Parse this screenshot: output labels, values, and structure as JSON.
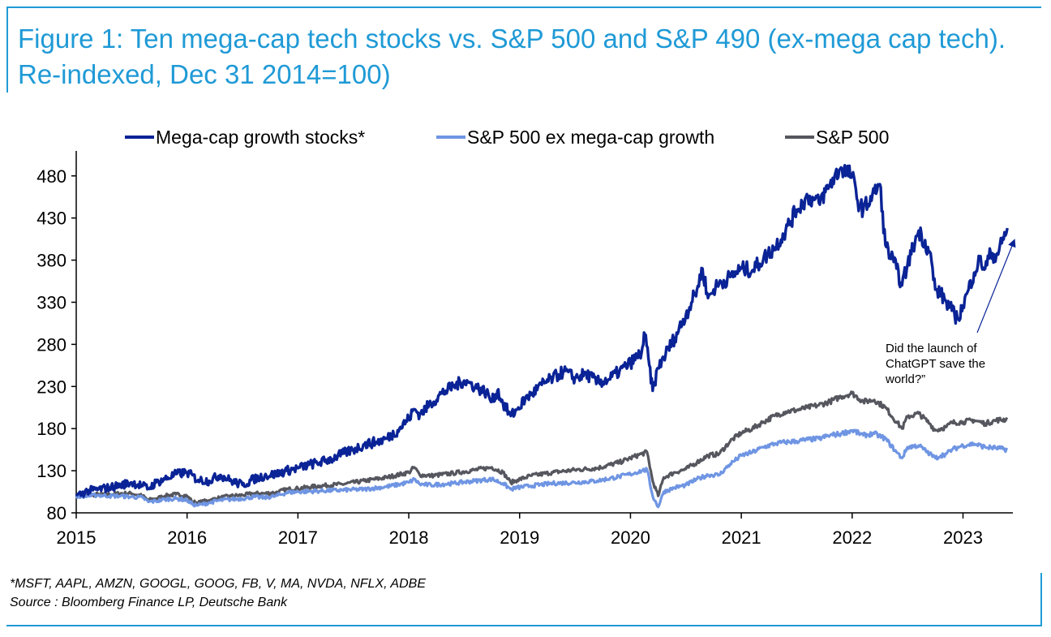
{
  "title": "Figure 1: Ten mega-cap tech stocks vs. S&P 500 and S&P 490 (ex-mega cap tech). Re-indexed, Dec 31 2014=100)",
  "footnote": {
    "tickers": "*MSFT, AAPL, AMZN, GOOGL, GOOG, FB, V, MA, NVDA, NFLX, ADBE",
    "source": "Source : Bloomberg Finance LP, Deutsche Bank"
  },
  "colors": {
    "frame": "#1f9ad6",
    "title": "#1f9ad6",
    "mega": "#0a2396",
    "ex_mega": "#6f95e3",
    "sp500": "#55565e",
    "annotation_arrow": "#0a2396"
  },
  "chart_data": {
    "type": "line",
    "title": "",
    "xlabel": "",
    "ylabel": "",
    "xlim": [
      2015.0,
      2023.45
    ],
    "ylim": [
      80,
      500
    ],
    "yticks": [
      80,
      130,
      180,
      230,
      280,
      330,
      380,
      430,
      480
    ],
    "xticks": [
      2015,
      2016,
      2017,
      2018,
      2019,
      2020,
      2021,
      2022,
      2023
    ],
    "ytick_labels": [
      "80",
      "130",
      "180",
      "230",
      "280",
      "330",
      "380",
      "430",
      "480"
    ],
    "xtick_labels": [
      "2015",
      "2016",
      "2017",
      "2018",
      "2019",
      "2020",
      "2021",
      "2022",
      "2023"
    ],
    "grid": false,
    "legend_position": "top",
    "series": [
      {
        "name": "Mega-cap growth stocks*",
        "color": "#0a2396",
        "x": [
          2015.0,
          2015.1,
          2015.2,
          2015.3,
          2015.4,
          2015.5,
          2015.6,
          2015.65,
          2015.72,
          2015.8,
          2015.9,
          2016.0,
          2016.1,
          2016.2,
          2016.3,
          2016.4,
          2016.5,
          2016.6,
          2016.7,
          2016.8,
          2016.9,
          2017.0,
          2017.1,
          2017.2,
          2017.3,
          2017.4,
          2017.5,
          2017.6,
          2017.7,
          2017.8,
          2017.9,
          2018.0,
          2018.05,
          2018.1,
          2018.2,
          2018.3,
          2018.4,
          2018.5,
          2018.6,
          2018.7,
          2018.75,
          2018.8,
          2018.85,
          2018.92,
          2018.98,
          2019.05,
          2019.1,
          2019.2,
          2019.3,
          2019.4,
          2019.5,
          2019.6,
          2019.7,
          2019.8,
          2019.9,
          2020.0,
          2020.1,
          2020.13,
          2020.17,
          2020.2,
          2020.25,
          2020.3,
          2020.4,
          2020.5,
          2020.6,
          2020.65,
          2020.7,
          2020.75,
          2020.8,
          2020.9,
          2021.0,
          2021.1,
          2021.2,
          2021.3,
          2021.4,
          2021.5,
          2021.6,
          2021.7,
          2021.8,
          2021.9,
          2022.0,
          2022.05,
          2022.1,
          2022.2,
          2022.25,
          2022.3,
          2022.4,
          2022.45,
          2022.5,
          2022.6,
          2022.7,
          2022.75,
          2022.8,
          2022.85,
          2022.9,
          2022.95,
          2023.0,
          2023.05,
          2023.1,
          2023.15,
          2023.2,
          2023.25,
          2023.3,
          2023.35,
          2023.4
        ],
        "values": [
          100,
          106,
          108,
          110,
          113,
          116,
          112,
          109,
          116,
          120,
          126,
          128,
          119,
          118,
          125,
          118,
          113,
          120,
          124,
          126,
          130,
          133,
          137,
          140,
          144,
          150,
          155,
          161,
          164,
          168,
          178,
          192,
          203,
          197,
          210,
          222,
          230,
          237,
          230,
          223,
          212,
          225,
          210,
          195,
          203,
          215,
          220,
          232,
          240,
          248,
          240,
          245,
          235,
          238,
          248,
          258,
          270,
          292,
          255,
          225,
          252,
          265,
          288,
          315,
          345,
          370,
          335,
          345,
          352,
          360,
          370,
          368,
          382,
          395,
          415,
          440,
          455,
          448,
          470,
          490,
          480,
          450,
          440,
          460,
          470,
          398,
          370,
          350,
          375,
          415,
          390,
          345,
          340,
          330,
          320,
          310,
          326,
          345,
          365,
          380,
          370,
          388,
          385,
          400,
          418
        ]
      },
      {
        "name": "S&P 500 ex mega-cap growth",
        "color": "#6f95e3",
        "x": [
          2015.0,
          2015.1,
          2015.2,
          2015.3,
          2015.4,
          2015.5,
          2015.6,
          2015.65,
          2015.72,
          2015.8,
          2015.9,
          2016.0,
          2016.05,
          2016.1,
          2016.2,
          2016.3,
          2016.4,
          2016.5,
          2016.6,
          2016.7,
          2016.8,
          2016.9,
          2017.0,
          2017.2,
          2017.4,
          2017.6,
          2017.8,
          2018.0,
          2018.05,
          2018.1,
          2018.2,
          2018.4,
          2018.6,
          2018.75,
          2018.85,
          2018.92,
          2018.98,
          2019.1,
          2019.3,
          2019.5,
          2019.7,
          2019.9,
          2020.0,
          2020.1,
          2020.15,
          2020.2,
          2020.25,
          2020.3,
          2020.4,
          2020.5,
          2020.6,
          2020.7,
          2020.8,
          2020.9,
          2021.0,
          2021.1,
          2021.2,
          2021.3,
          2021.4,
          2021.5,
          2021.6,
          2021.7,
          2021.8,
          2021.9,
          2022.0,
          2022.1,
          2022.2,
          2022.3,
          2022.4,
          2022.45,
          2022.5,
          2022.6,
          2022.7,
          2022.75,
          2022.8,
          2022.85,
          2022.9,
          2023.0,
          2023.1,
          2023.2,
          2023.3,
          2023.4
        ],
        "values": [
          100,
          100,
          101,
          100,
          100,
          99,
          98,
          93,
          94,
          96,
          97,
          95,
          90,
          89,
          92,
          95,
          96,
          97,
          99,
          98,
          100,
          104,
          105,
          106,
          107,
          108,
          111,
          116,
          120,
          114,
          113,
          115,
          118,
          120,
          115,
          108,
          110,
          112,
          115,
          116,
          118,
          123,
          126,
          130,
          131,
          100,
          87,
          105,
          110,
          113,
          120,
          125,
          125,
          138,
          148,
          152,
          158,
          162,
          164,
          165,
          167,
          168,
          172,
          174,
          178,
          172,
          174,
          168,
          152,
          145,
          158,
          160,
          150,
          145,
          148,
          150,
          155,
          160,
          162,
          158,
          157,
          155
        ]
      },
      {
        "name": "S&P 500",
        "color": "#55565e",
        "x": [
          2015.0,
          2015.1,
          2015.2,
          2015.3,
          2015.4,
          2015.5,
          2015.6,
          2015.65,
          2015.72,
          2015.8,
          2015.9,
          2016.0,
          2016.05,
          2016.1,
          2016.2,
          2016.3,
          2016.4,
          2016.5,
          2016.6,
          2016.7,
          2016.8,
          2016.9,
          2017.0,
          2017.2,
          2017.4,
          2017.6,
          2017.8,
          2018.0,
          2018.05,
          2018.1,
          2018.2,
          2018.4,
          2018.6,
          2018.75,
          2018.85,
          2018.92,
          2018.98,
          2019.1,
          2019.3,
          2019.5,
          2019.7,
          2019.9,
          2020.0,
          2020.1,
          2020.15,
          2020.2,
          2020.25,
          2020.3,
          2020.4,
          2020.5,
          2020.6,
          2020.7,
          2020.8,
          2020.9,
          2021.0,
          2021.1,
          2021.2,
          2021.3,
          2021.4,
          2021.5,
          2021.6,
          2021.7,
          2021.8,
          2021.9,
          2022.0,
          2022.1,
          2022.2,
          2022.3,
          2022.4,
          2022.45,
          2022.5,
          2022.6,
          2022.7,
          2022.75,
          2022.8,
          2022.85,
          2022.9,
          2023.0,
          2023.1,
          2023.2,
          2023.3,
          2023.4
        ],
        "values": [
          100,
          101,
          102,
          102,
          103,
          103,
          100,
          95,
          97,
          100,
          102,
          100,
          93,
          92,
          95,
          98,
          100,
          101,
          103,
          103,
          104,
          108,
          109,
          112,
          114,
          118,
          122,
          128,
          134,
          125,
          124,
          127,
          131,
          134,
          128,
          116,
          119,
          124,
          128,
          131,
          133,
          140,
          145,
          150,
          152,
          118,
          100,
          122,
          128,
          132,
          140,
          148,
          150,
          165,
          175,
          180,
          188,
          195,
          200,
          202,
          205,
          208,
          212,
          218,
          222,
          212,
          214,
          205,
          188,
          180,
          194,
          198,
          186,
          178,
          180,
          182,
          187,
          188,
          190,
          186,
          190,
          191
        ]
      }
    ],
    "annotation": {
      "text_lines": [
        "Did the launch of",
        "ChatGPT save the",
        "world?”"
      ]
    }
  }
}
